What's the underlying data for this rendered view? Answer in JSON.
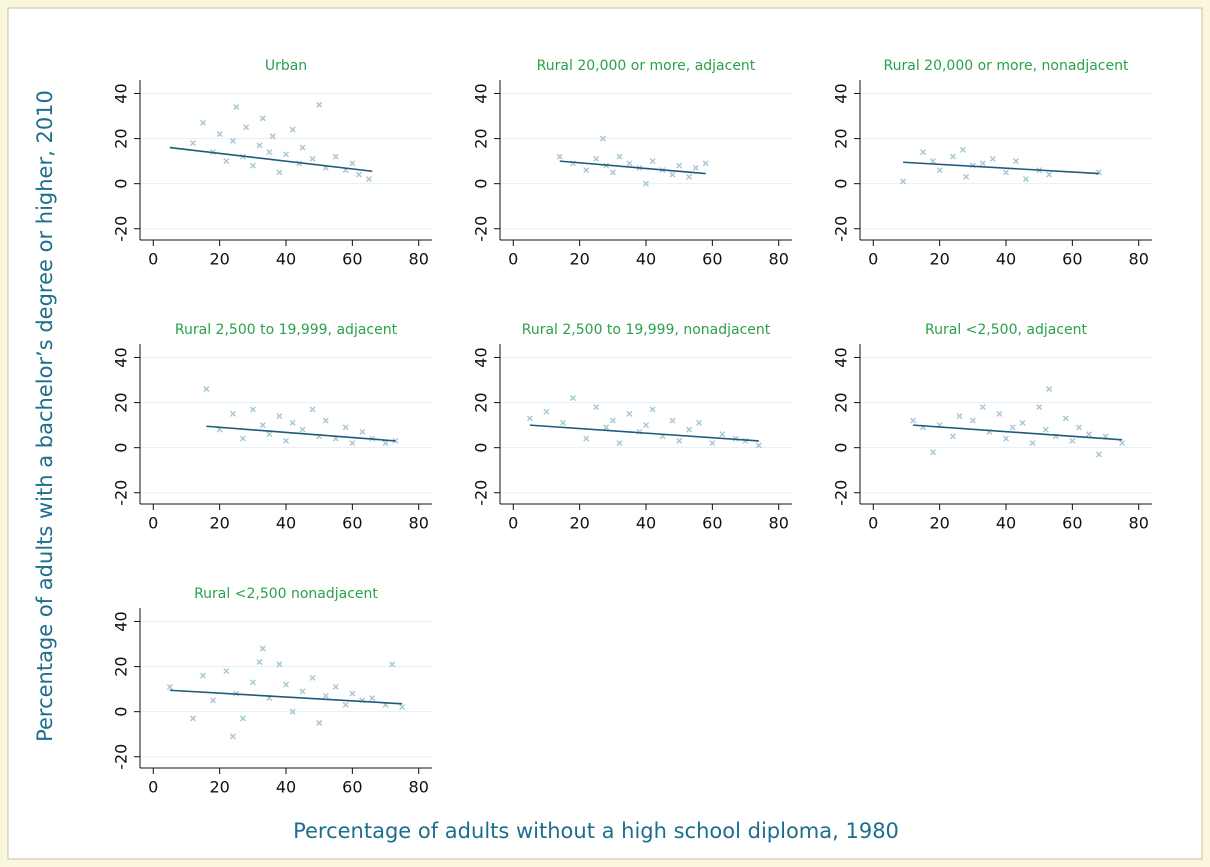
{
  "ylabel": "Percentage of adults with a bachelor’s degree or higher, 2010",
  "xlabel": "Percentage of adults without a high school diploma, 1980",
  "chart_data": [
    {
      "type": "scatter",
      "title": "Urban",
      "color": "#a9c8d8",
      "x": [
        12,
        15,
        18,
        20,
        22,
        24,
        25,
        27,
        28,
        30,
        32,
        33,
        35,
        36,
        38,
        40,
        42,
        44,
        45,
        48,
        50,
        52,
        55,
        58,
        60,
        62,
        65
      ],
      "y": [
        18,
        27,
        14,
        22,
        10,
        19,
        34,
        12,
        25,
        8,
        17,
        29,
        14,
        21,
        5,
        13,
        24,
        9,
        16,
        11,
        35,
        7,
        12,
        6,
        9,
        4,
        2
      ],
      "fit": {
        "x": [
          5,
          66
        ],
        "y": [
          16,
          5.5
        ],
        "color": "#1f5b78"
      },
      "xlim": [
        -4,
        84
      ],
      "ylim": [
        -25,
        46
      ],
      "xticks": [
        0,
        20,
        40,
        60,
        80
      ],
      "yticks": [
        -20,
        0,
        20,
        40
      ],
      "grid": true
    },
    {
      "type": "scatter",
      "title": "Rural 20,000 or more, adjacent",
      "color": "#a9c8d8",
      "x": [
        14,
        18,
        22,
        25,
        27,
        28,
        30,
        32,
        35,
        38,
        40,
        42,
        45,
        48,
        50,
        53,
        55,
        58
      ],
      "y": [
        12,
        9,
        6,
        11,
        20,
        8,
        5,
        12,
        9,
        7,
        0,
        10,
        6,
        4,
        8,
        3,
        7,
        9
      ],
      "fit": {
        "x": [
          14,
          58
        ],
        "y": [
          10,
          4.5
        ],
        "color": "#1f5b78"
      },
      "xlim": [
        -4,
        84
      ],
      "ylim": [
        -25,
        46
      ],
      "xticks": [
        0,
        20,
        40,
        60,
        80
      ],
      "yticks": [
        -20,
        0,
        20,
        40
      ],
      "grid": true
    },
    {
      "type": "scatter",
      "title": "Rural 20,000 or more, nonadjacent",
      "color": "#a9c8d8",
      "x": [
        9,
        15,
        18,
        20,
        24,
        27,
        28,
        30,
        33,
        36,
        40,
        43,
        46,
        50,
        53,
        68
      ],
      "y": [
        1,
        14,
        10,
        6,
        12,
        15,
        3,
        8,
        9,
        11,
        5,
        10,
        2,
        6,
        4,
        5
      ],
      "fit": {
        "x": [
          9,
          68
        ],
        "y": [
          9.5,
          4.5
        ],
        "color": "#1f5b78"
      },
      "xlim": [
        -4,
        84
      ],
      "ylim": [
        -25,
        46
      ],
      "xticks": [
        0,
        20,
        40,
        60,
        80
      ],
      "yticks": [
        -20,
        0,
        20,
        40
      ],
      "grid": true
    },
    {
      "type": "scatter",
      "title": "Rural 2,500 to 19,999, adjacent",
      "color": "#a9c8d8",
      "x": [
        16,
        20,
        24,
        27,
        30,
        33,
        35,
        38,
        40,
        42,
        45,
        48,
        50,
        52,
        55,
        58,
        60,
        63,
        66,
        70,
        73
      ],
      "y": [
        26,
        8,
        15,
        4,
        17,
        10,
        6,
        14,
        3,
        11,
        8,
        17,
        5,
        12,
        4,
        9,
        2,
        7,
        4,
        2,
        3
      ],
      "fit": {
        "x": [
          16,
          73
        ],
        "y": [
          9.5,
          3
        ],
        "color": "#1f5b78"
      },
      "xlim": [
        -4,
        84
      ],
      "ylim": [
        -25,
        46
      ],
      "xticks": [
        0,
        20,
        40,
        60,
        80
      ],
      "yticks": [
        -20,
        0,
        20,
        40
      ],
      "grid": true
    },
    {
      "type": "scatter",
      "title": "Rural 2,500 to 19,999, nonadjacent",
      "color": "#a9c8d8",
      "x": [
        5,
        10,
        15,
        18,
        22,
        25,
        28,
        30,
        32,
        35,
        38,
        40,
        42,
        45,
        48,
        50,
        53,
        56,
        60,
        63,
        67,
        70,
        74
      ],
      "y": [
        13,
        16,
        11,
        22,
        4,
        18,
        9,
        12,
        2,
        15,
        7,
        10,
        17,
        5,
        12,
        3,
        8,
        11,
        2,
        6,
        4,
        3,
        1
      ],
      "fit": {
        "x": [
          5,
          74
        ],
        "y": [
          10,
          3
        ],
        "color": "#1f5b78"
      },
      "xlim": [
        -4,
        84
      ],
      "ylim": [
        -25,
        46
      ],
      "xticks": [
        0,
        20,
        40,
        60,
        80
      ],
      "yticks": [
        -20,
        0,
        20,
        40
      ],
      "grid": true
    },
    {
      "type": "scatter",
      "title": "Rural <2,500, adjacent",
      "color": "#a9c8d8",
      "x": [
        12,
        15,
        18,
        20,
        24,
        26,
        30,
        33,
        35,
        38,
        40,
        42,
        45,
        48,
        50,
        52,
        53,
        55,
        58,
        60,
        62,
        65,
        68,
        70,
        75
      ],
      "y": [
        12,
        9,
        -2,
        10,
        5,
        14,
        12,
        18,
        7,
        15,
        4,
        9,
        11,
        2,
        18,
        8,
        26,
        5,
        13,
        3,
        9,
        6,
        -3,
        5,
        2
      ],
      "fit": {
        "x": [
          12,
          75
        ],
        "y": [
          10,
          3.5
        ],
        "color": "#1f5b78"
      },
      "xlim": [
        -4,
        84
      ],
      "ylim": [
        -25,
        46
      ],
      "xticks": [
        0,
        20,
        40,
        60,
        80
      ],
      "yticks": [
        -20,
        0,
        20,
        40
      ],
      "grid": true
    },
    {
      "type": "scatter",
      "title": "Rural <2,500 nonadjacent",
      "color": "#a9c8d8",
      "x": [
        5,
        12,
        15,
        18,
        22,
        24,
        25,
        27,
        30,
        32,
        33,
        35,
        38,
        40,
        42,
        45,
        48,
        50,
        52,
        55,
        58,
        60,
        63,
        66,
        70,
        72,
        75
      ],
      "y": [
        11,
        -3,
        16,
        5,
        18,
        -11,
        8,
        -3,
        13,
        22,
        28,
        6,
        21,
        12,
        0,
        9,
        15,
        -5,
        7,
        11,
        3,
        8,
        5,
        6,
        3,
        21,
        2
      ],
      "fit": {
        "x": [
          5,
          75
        ],
        "y": [
          9.5,
          3.5
        ],
        "color": "#1f5b78"
      },
      "xlim": [
        -4,
        84
      ],
      "ylim": [
        -25,
        46
      ],
      "xticks": [
        0,
        20,
        40,
        60,
        80
      ],
      "yticks": [
        -20,
        0,
        20,
        40
      ],
      "grid": true
    }
  ]
}
